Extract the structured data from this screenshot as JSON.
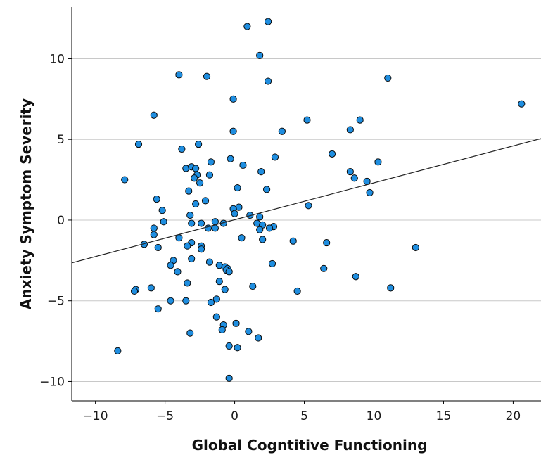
{
  "chart_data": {
    "type": "scatter",
    "xlabel": "Global Cogntitive Functioning",
    "ylabel": "Anxiety Symptom Severity",
    "xlim": [
      -11.7,
      22
    ],
    "ylim": [
      -11.2,
      13.2
    ],
    "xticks": [
      -10,
      -5,
      0,
      5,
      10,
      15,
      20
    ],
    "yticks": [
      -10,
      -5,
      0,
      5,
      10
    ],
    "xtick_labels": [
      "−10",
      "−5",
      "0",
      "5",
      "10",
      "15",
      "20"
    ],
    "ytick_labels": [
      "−10",
      "−5",
      "0",
      "5",
      "10"
    ],
    "grid": "horizontal",
    "legend": "none",
    "point_color": "#1f8ee0",
    "point_edge_color": "#0a0a0a",
    "fit_line": {
      "x": [
        -11.7,
        22
      ],
      "y": [
        -2.65,
        5.05
      ],
      "color": "#222222"
    },
    "points": [
      [
        0.9,
        12.0
      ],
      [
        2.4,
        12.3
      ],
      [
        1.8,
        10.2
      ],
      [
        -4.0,
        9.0
      ],
      [
        -2.0,
        8.9
      ],
      [
        2.4,
        8.6
      ],
      [
        11.0,
        8.8
      ],
      [
        20.6,
        7.2
      ],
      [
        -0.1,
        7.5
      ],
      [
        -5.8,
        6.5
      ],
      [
        5.2,
        6.2
      ],
      [
        9.0,
        6.2
      ],
      [
        8.3,
        5.6
      ],
      [
        3.4,
        5.5
      ],
      [
        -0.1,
        5.5
      ],
      [
        -6.9,
        4.7
      ],
      [
        -2.6,
        4.7
      ],
      [
        -3.8,
        4.4
      ],
      [
        7.0,
        4.1
      ],
      [
        2.9,
        3.9
      ],
      [
        -0.3,
        3.8
      ],
      [
        10.3,
        3.6
      ],
      [
        -1.7,
        3.6
      ],
      [
        0.6,
        3.4
      ],
      [
        -3.5,
        3.2
      ],
      [
        -3.1,
        3.3
      ],
      [
        -2.8,
        3.2
      ],
      [
        8.3,
        3.0
      ],
      [
        1.9,
        3.0
      ],
      [
        -2.7,
        2.8
      ],
      [
        -1.8,
        2.8
      ],
      [
        8.6,
        2.6
      ],
      [
        -2.9,
        2.6
      ],
      [
        -7.9,
        2.5
      ],
      [
        9.5,
        2.4
      ],
      [
        -2.5,
        2.3
      ],
      [
        0.2,
        2.0
      ],
      [
        2.3,
        1.9
      ],
      [
        9.7,
        1.7
      ],
      [
        -3.3,
        1.8
      ],
      [
        -5.6,
        1.3
      ],
      [
        -2.1,
        1.2
      ],
      [
        -2.8,
        1.0
      ],
      [
        5.3,
        0.9
      ],
      [
        0.3,
        0.8
      ],
      [
        -0.1,
        0.7
      ],
      [
        -5.2,
        0.6
      ],
      [
        0.0,
        0.4
      ],
      [
        1.1,
        0.3
      ],
      [
        -3.2,
        0.3
      ],
      [
        1.8,
        0.2
      ],
      [
        -1.4,
        -0.1
      ],
      [
        -5.1,
        -0.1
      ],
      [
        1.6,
        -0.2
      ],
      [
        -0.8,
        -0.2
      ],
      [
        -2.4,
        -0.2
      ],
      [
        -3.1,
        -0.2
      ],
      [
        2.0,
        -0.3
      ],
      [
        2.8,
        -0.4
      ],
      [
        -1.4,
        -0.5
      ],
      [
        2.5,
        -0.5
      ],
      [
        -1.9,
        -0.5
      ],
      [
        -5.8,
        -0.5
      ],
      [
        1.8,
        -0.6
      ],
      [
        -5.8,
        -0.9
      ],
      [
        0.5,
        -1.1
      ],
      [
        -4.0,
        -1.1
      ],
      [
        2.0,
        -1.2
      ],
      [
        4.2,
        -1.3
      ],
      [
        -3.1,
        -1.4
      ],
      [
        6.6,
        -1.4
      ],
      [
        -6.5,
        -1.5
      ],
      [
        -2.4,
        -1.6
      ],
      [
        -3.4,
        -1.6
      ],
      [
        13.0,
        -1.7
      ],
      [
        -5.5,
        -1.7
      ],
      [
        -2.4,
        -1.8
      ],
      [
        -3.1,
        -2.4
      ],
      [
        -4.4,
        -2.5
      ],
      [
        -1.8,
        -2.6
      ],
      [
        -4.6,
        -2.8
      ],
      [
        2.7,
        -2.7
      ],
      [
        -1.1,
        -2.8
      ],
      [
        -0.7,
        -2.9
      ],
      [
        -0.5,
        -3.0
      ],
      [
        6.4,
        -3.0
      ],
      [
        -0.6,
        -3.1
      ],
      [
        -0.4,
        -3.2
      ],
      [
        -4.1,
        -3.2
      ],
      [
        8.7,
        -3.5
      ],
      [
        -1.1,
        -3.8
      ],
      [
        -3.4,
        -3.9
      ],
      [
        1.3,
        -4.1
      ],
      [
        11.2,
        -4.2
      ],
      [
        -6.0,
        -4.2
      ],
      [
        -7.1,
        -4.3
      ],
      [
        -0.7,
        -4.3
      ],
      [
        -7.2,
        -4.4
      ],
      [
        4.5,
        -4.4
      ],
      [
        -1.3,
        -4.9
      ],
      [
        -4.6,
        -5.0
      ],
      [
        -3.5,
        -5.0
      ],
      [
        -1.7,
        -5.1
      ],
      [
        -5.5,
        -5.5
      ],
      [
        -1.3,
        -6.0
      ],
      [
        0.1,
        -6.4
      ],
      [
        -0.8,
        -6.5
      ],
      [
        -0.9,
        -6.8
      ],
      [
        1.0,
        -6.9
      ],
      [
        -3.2,
        -7.0
      ],
      [
        1.7,
        -7.3
      ],
      [
        -0.4,
        -7.8
      ],
      [
        0.2,
        -7.9
      ],
      [
        -8.4,
        -8.1
      ],
      [
        -0.4,
        -9.8
      ]
    ]
  }
}
